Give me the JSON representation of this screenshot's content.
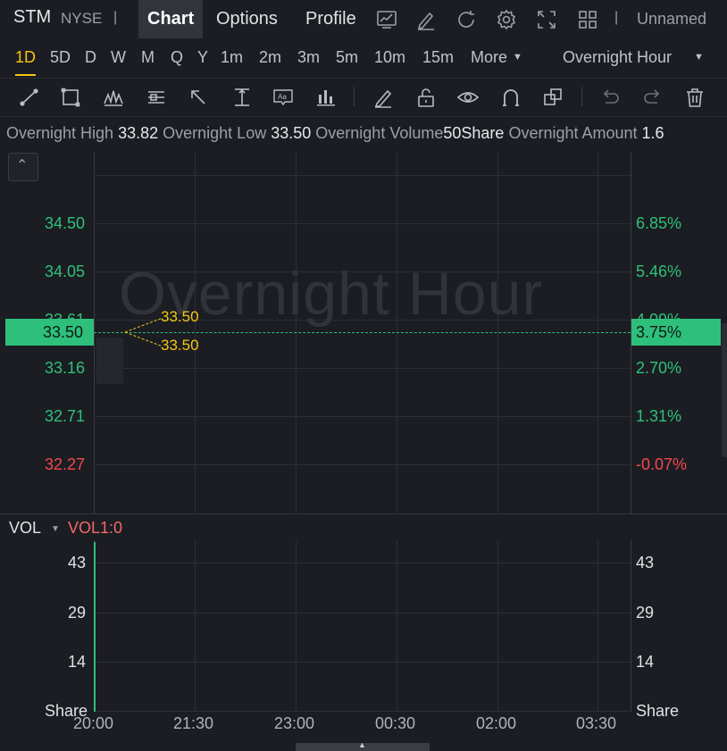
{
  "header": {
    "ticker": "STM",
    "exchange": "NYSE",
    "tabs": [
      "Chart",
      "Options",
      "Profile"
    ],
    "active_tab": "Chart",
    "layout_name": "Unnamed"
  },
  "intervals": {
    "items": [
      "1D",
      "5D",
      "D",
      "W",
      "M",
      "Q",
      "Y",
      "1m",
      "2m",
      "3m",
      "5m",
      "10m",
      "15m",
      "More"
    ],
    "active": "1D",
    "session": "Overnight Hour"
  },
  "info": {
    "high_label": "Overnight High",
    "high_value": "33.82",
    "low_label": "Overnight Low",
    "low_value": "33.50",
    "volume_label": "Overnight Volume",
    "volume_value": "50Share",
    "amount_label": "Overnight Amount",
    "amount_value": "1.6"
  },
  "chart": {
    "watermark": "Overnight Hour",
    "price_labels": [
      "34.50",
      "34.05",
      "33.61",
      "33.16",
      "32.71",
      "32.27"
    ],
    "pct_labels": [
      "6.85%",
      "5.46%",
      "4.09%",
      "2.70%",
      "1.31%",
      "-0.07%"
    ],
    "current_price": "33.50",
    "current_pct": "3.75%",
    "callout_high": "33.50",
    "callout_low": "33.50"
  },
  "volume": {
    "title": "VOL",
    "indicator": "VOL1:0",
    "left_labels": [
      "43",
      "29",
      "14",
      "Share"
    ],
    "right_labels": [
      "43",
      "29",
      "14",
      "Share"
    ]
  },
  "time_axis": [
    "20:00",
    "21:30",
    "23:00",
    "00:30",
    "02:00",
    "03:30"
  ],
  "colors": {
    "up": "#2ec07b",
    "down": "#f0494e",
    "accent": "#f5c518",
    "background": "#1b1d22"
  }
}
